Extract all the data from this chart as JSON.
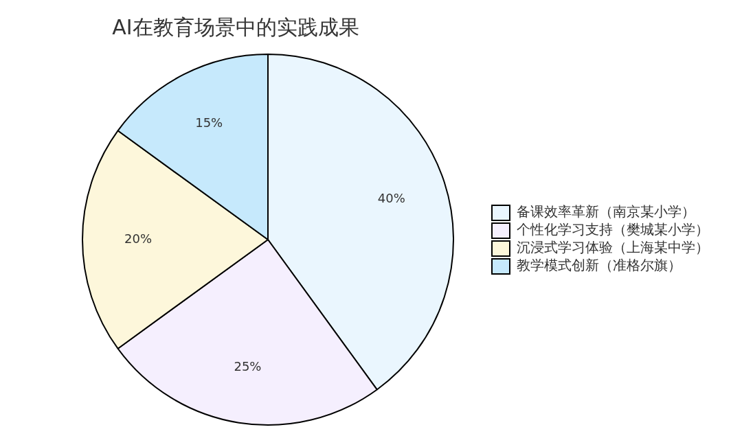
{
  "chart_data": {
    "type": "pie",
    "title": "AI在教育场景中的实践成果",
    "categories": [
      "备课效率革新（南京某小学）",
      "个性化学习支持（樊城某小学）",
      "沉浸式学习体验（上海某中学）",
      "教学模式创新（准格尔旗）"
    ],
    "values": [
      40,
      25,
      20,
      15
    ],
    "value_labels": [
      "40%",
      "25%",
      "20%",
      "15%"
    ],
    "colors": [
      "#eaf6fe",
      "#f5effe",
      "#fdf7db",
      "#c6e9fc"
    ],
    "legend": "right"
  }
}
